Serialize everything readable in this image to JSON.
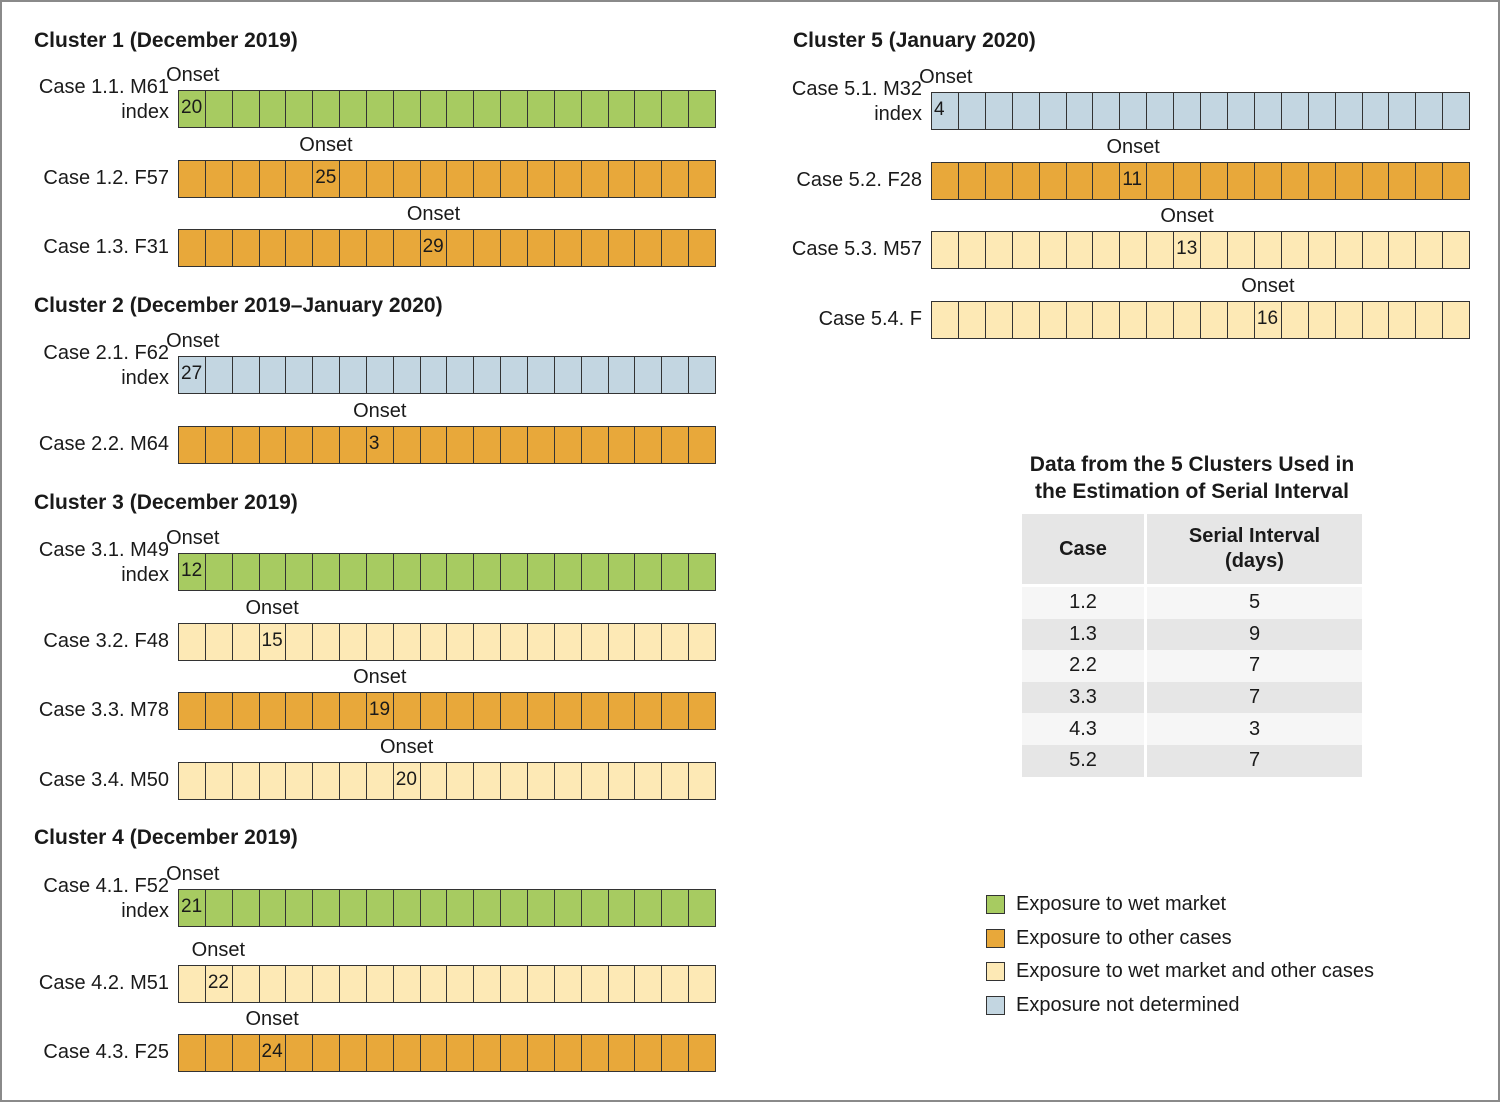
{
  "colors": {
    "wet_market": "#a7cb61",
    "other_cases": "#e8a83a",
    "both": "#fde9b5",
    "not_determined": "#c3d6e1"
  },
  "onset_text": "Onset",
  "index_text": "index",
  "clusters": [
    {
      "title": "Cluster 1 (December 2019)",
      "cases": [
        {
          "label": "Case 1.1. M61",
          "index": true,
          "exposure": "wet_market",
          "onset_cell": 0,
          "onset_day": "20"
        },
        {
          "label": "Case 1.2. F57",
          "index": false,
          "exposure": "other_cases",
          "onset_cell": 5,
          "onset_day": "25"
        },
        {
          "label": "Case 1.3. F31",
          "index": false,
          "exposure": "other_cases",
          "onset_cell": 9,
          "onset_day": "29"
        }
      ]
    },
    {
      "title": "Cluster 2 (December 2019–January 2020)",
      "cases": [
        {
          "label": "Case 2.1. F62",
          "index": true,
          "exposure": "not_determined",
          "onset_cell": 0,
          "onset_day": "27"
        },
        {
          "label": "Case 2.2. M64",
          "index": false,
          "exposure": "other_cases",
          "onset_cell": 7,
          "onset_day": "3"
        }
      ]
    },
    {
      "title": "Cluster 3 (December 2019)",
      "cases": [
        {
          "label": "Case 3.1. M49",
          "index": true,
          "exposure": "wet_market",
          "onset_cell": 0,
          "onset_day": "12"
        },
        {
          "label": "Case 3.2. F48",
          "index": false,
          "exposure": "both",
          "onset_cell": 3,
          "onset_day": "15"
        },
        {
          "label": "Case 3.3. M78",
          "index": false,
          "exposure": "other_cases",
          "onset_cell": 7,
          "onset_day": "19"
        },
        {
          "label": "Case 3.4. M50",
          "index": false,
          "exposure": "both",
          "onset_cell": 8,
          "onset_day": "20"
        }
      ]
    },
    {
      "title": "Cluster 4 (December 2019)",
      "cases": [
        {
          "label": "Case 4.1. F52",
          "index": true,
          "exposure": "wet_market",
          "onset_cell": 0,
          "onset_day": "21"
        },
        {
          "label": "Case 4.2. M51",
          "index": false,
          "exposure": "both",
          "onset_cell": 1,
          "onset_day": "22"
        },
        {
          "label": "Case 4.3. F25",
          "index": false,
          "exposure": "other_cases",
          "onset_cell": 3,
          "onset_day": "24"
        }
      ]
    },
    {
      "title": "Cluster 5 (January 2020)",
      "cases": [
        {
          "label": "Case 5.1. M32",
          "index": true,
          "exposure": "not_determined",
          "onset_cell": 0,
          "onset_day": "4"
        },
        {
          "label": "Case 5.2. F28",
          "index": false,
          "exposure": "other_cases",
          "onset_cell": 7,
          "onset_day": "11"
        },
        {
          "label": "Case 5.3. M57",
          "index": false,
          "exposure": "both",
          "onset_cell": 9,
          "onset_day": "13"
        },
        {
          "label": "Case 5.4. F",
          "index": false,
          "exposure": "both",
          "onset_cell": 12,
          "onset_day": "16"
        }
      ]
    }
  ],
  "table": {
    "title_line1": "Data from the 5 Clusters Used in",
    "title_line2": "the Estimation of Serial Interval",
    "col_case": "Case",
    "col_serial_line1": "Serial Interval",
    "col_serial_line2": "(days)",
    "rows": [
      {
        "case": "1.2",
        "serial_interval": "5"
      },
      {
        "case": "1.3",
        "serial_interval": "9"
      },
      {
        "case": "2.2",
        "serial_interval": "7"
      },
      {
        "case": "3.3",
        "serial_interval": "7"
      },
      {
        "case": "4.3",
        "serial_interval": "3"
      },
      {
        "case": "5.2",
        "serial_interval": "7"
      }
    ]
  },
  "legend": [
    {
      "key": "wet_market",
      "label": "Exposure to wet market"
    },
    {
      "key": "other_cases",
      "label": "Exposure to other cases"
    },
    {
      "key": "both",
      "label": "Exposure to wet market and other cases"
    },
    {
      "key": "not_determined",
      "label": "Exposure not determined"
    }
  ]
}
